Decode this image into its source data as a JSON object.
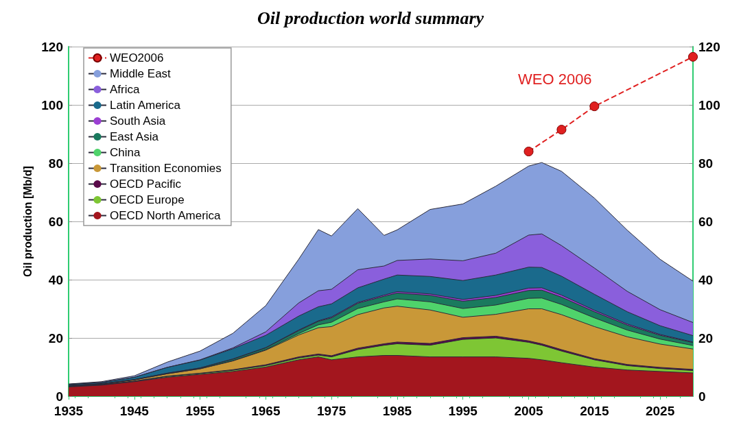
{
  "chart_data": {
    "type": "area",
    "title": "Oil production world summary",
    "ylabel": "Oil production [Mb/d]",
    "x": [
      1935,
      1940,
      1945,
      1950,
      1955,
      1960,
      1965,
      1970,
      1973,
      1975,
      1979,
      1983,
      1985,
      1990,
      1995,
      2000,
      2005,
      2007,
      2010,
      2015,
      2020,
      2025,
      2030
    ],
    "stacked": true,
    "series": [
      {
        "name": "OECD North America",
        "color": "#a3161e",
        "values": [
          3.2,
          3.8,
          5,
          6.5,
          7.5,
          8.5,
          10,
          12.5,
          13.5,
          12.5,
          13.5,
          14,
          14,
          13.5,
          13.5,
          13.5,
          13,
          12.5,
          11.5,
          10,
          9,
          8.5,
          8
        ]
      },
      {
        "name": "OECD Europe",
        "color": "#7ec634",
        "values": [
          0.1,
          0.1,
          0.1,
          0.3,
          0.3,
          0.4,
          0.5,
          0.6,
          0.6,
          1,
          2.5,
          3.5,
          4,
          4,
          6,
          6.5,
          5.5,
          5,
          4,
          2.5,
          1.5,
          1,
          0.8
        ]
      },
      {
        "name": "OECD Pacific",
        "color": "#5a0a4a",
        "values": [
          0.1,
          0.1,
          0.1,
          0.1,
          0.1,
          0.2,
          0.3,
          0.4,
          0.4,
          0.4,
          0.5,
          0.5,
          0.6,
          0.6,
          0.6,
          0.6,
          0.5,
          0.5,
          0.5,
          0.4,
          0.4,
          0.4,
          0.4
        ]
      },
      {
        "name": "Transition Economies",
        "color": "#c99838",
        "values": [
          0.2,
          0.2,
          0.4,
          0.8,
          1.5,
          3,
          5,
          7.5,
          9,
          10,
          11.5,
          12.3,
          12.3,
          11.5,
          7,
          7.5,
          11,
          12,
          12,
          11,
          9.5,
          8,
          7
        ]
      },
      {
        "name": "China",
        "color": "#4fd36b",
        "values": [
          0,
          0,
          0,
          0,
          0,
          0.1,
          0.2,
          0.5,
          1,
          1.5,
          2.1,
          2.1,
          2.5,
          2.8,
          3,
          3.2,
          3.6,
          3.7,
          3.5,
          3,
          2.3,
          1.7,
          1.2
        ]
      },
      {
        "name": "East Asia",
        "color": "#1a7a5e",
        "values": [
          0.1,
          0.1,
          0.1,
          0.2,
          0.3,
          0.5,
          0.6,
          1,
          1.2,
          1.5,
          1.8,
          1.9,
          2,
          2.2,
          2.5,
          2.6,
          2.7,
          2.7,
          2.5,
          2.1,
          1.7,
          1.3,
          1
        ]
      },
      {
        "name": "South Asia",
        "color": "#9b3fd3",
        "values": [
          0,
          0,
          0,
          0,
          0,
          0.1,
          0.1,
          0.2,
          0.2,
          0.3,
          0.3,
          0.4,
          0.5,
          0.5,
          0.6,
          0.7,
          0.8,
          0.8,
          0.7,
          0.5,
          0.4,
          0.3,
          0.2
        ]
      },
      {
        "name": "Latin America",
        "color": "#1a6a8c",
        "values": [
          0.4,
          0.4,
          0.8,
          2,
          2.7,
          3.5,
          4.2,
          4.8,
          4.8,
          4.5,
          5,
          5.5,
          5.7,
          6,
          6.5,
          7,
          7.2,
          7,
          6.5,
          5.5,
          4.2,
          3,
          2.2
        ]
      },
      {
        "name": "Africa",
        "color": "#8a5fdc",
        "values": [
          0,
          0,
          0,
          0,
          0.1,
          0.3,
          1.2,
          4.5,
          5.5,
          5,
          6.2,
          4.5,
          5,
          6,
          6.8,
          7.5,
          11,
          11.5,
          10.5,
          9,
          7,
          5.5,
          4.5
        ]
      },
      {
        "name": "Middle East",
        "color": "#869fdc",
        "values": [
          0.1,
          0.3,
          0.5,
          1.8,
          3,
          5,
          9,
          15,
          21,
          18.3,
          21,
          10.5,
          10.5,
          17,
          19.5,
          23,
          23.7,
          24.5,
          25.5,
          24,
          21,
          17.3,
          14.2
        ]
      },
      {
        "name": "WEO2006",
        "type": "line",
        "color": "#e02020",
        "line_style": "dashed",
        "marker": "circle",
        "x": [
          2005,
          2010,
          2015,
          2030
        ],
        "values": [
          84,
          91.5,
          99.5,
          116.5
        ]
      }
    ],
    "annotations": [
      "WEO 2006"
    ],
    "xlim": [
      1935,
      2030
    ],
    "xticks": [
      1935,
      1945,
      1955,
      1965,
      1975,
      1985,
      1995,
      2005,
      2015,
      2025
    ],
    "ylim": [
      0,
      120
    ],
    "yticks": [
      0,
      20,
      40,
      60,
      80,
      100,
      120
    ],
    "y2lim": [
      0,
      120
    ],
    "y2ticks": [
      0,
      20,
      40,
      60,
      80,
      100,
      120
    ],
    "grid": "y",
    "legend": "top left"
  }
}
